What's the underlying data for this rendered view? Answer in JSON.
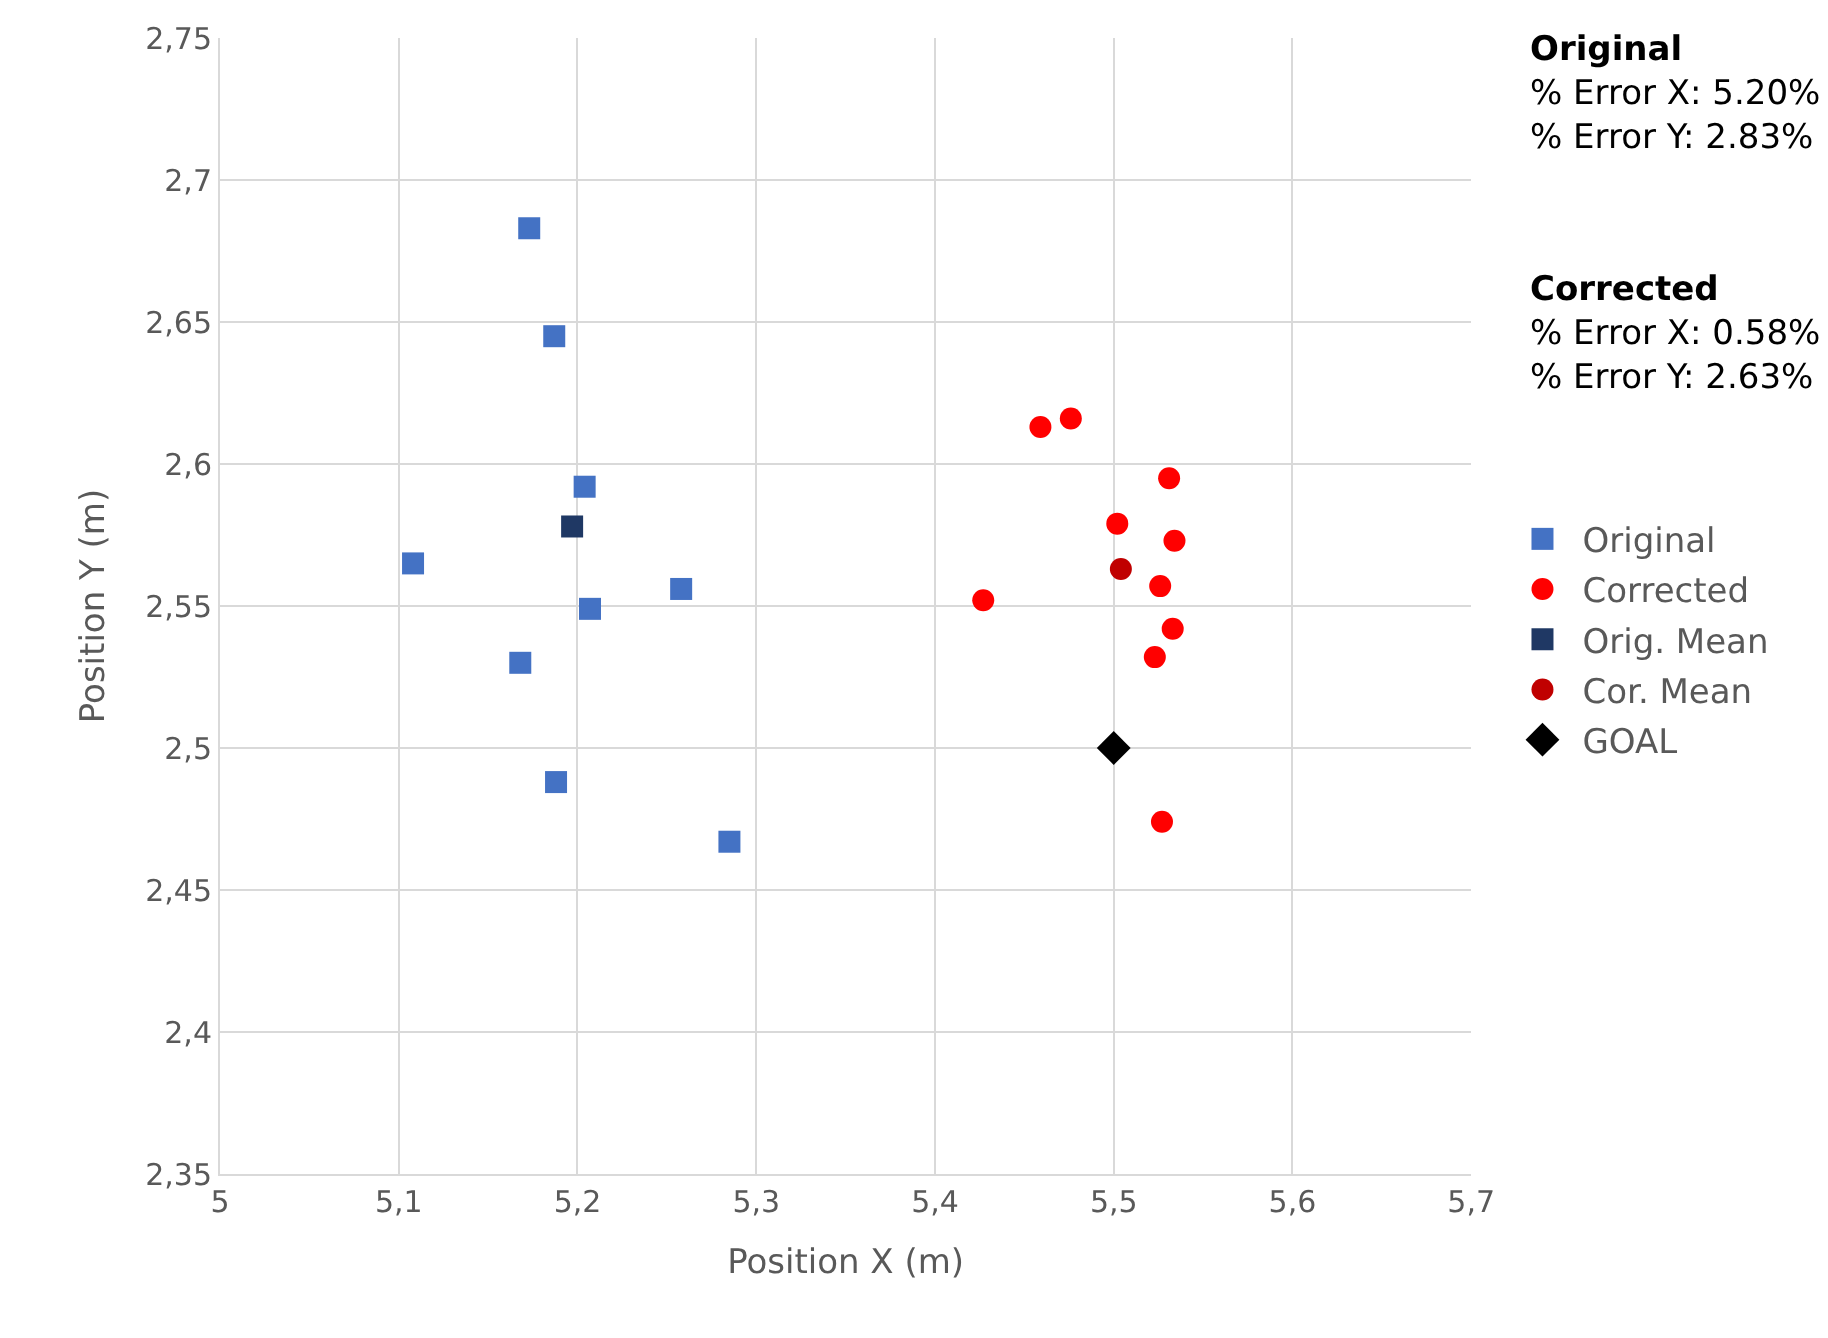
{
  "chart_data": {
    "type": "scatter",
    "xlabel": "Position X (m)",
    "ylabel": "Position Y (m)",
    "xlim": [
      5,
      5.7
    ],
    "xticks": [
      5,
      {
        "value": 5.1,
        "label": "5,1"
      },
      {
        "value": 5.2,
        "label": "5,2"
      },
      {
        "value": 5.3,
        "label": "5,3"
      },
      {
        "value": 5.4,
        "label": "5,4"
      },
      {
        "value": 5.5,
        "label": "5,5"
      },
      {
        "value": 5.6,
        "label": "5,6"
      },
      {
        "value": 5.7,
        "label": "5,7"
      }
    ],
    "ylim": [
      2.35,
      2.75
    ],
    "yticks": [
      {
        "value": 2.35,
        "label": "2,35"
      },
      {
        "value": 2.4,
        "label": "2,4"
      },
      {
        "value": 2.45,
        "label": "2,45"
      },
      {
        "value": 2.5,
        "label": "2,5"
      },
      {
        "value": 2.55,
        "label": "2,55"
      },
      {
        "value": 2.6,
        "label": "2,6"
      },
      {
        "value": 2.65,
        "label": "2,65"
      },
      {
        "value": 2.7,
        "label": "2,7"
      },
      {
        "value": 2.75,
        "label": "2,75"
      }
    ],
    "grid": true,
    "legend": "right",
    "series": [
      {
        "name": "Original",
        "color": "#4472c4",
        "marker": "square",
        "x": [
          5.173,
          5.187,
          5.204,
          5.108,
          5.207,
          5.258,
          5.168,
          5.188,
          5.285
        ],
        "values": [
          2.683,
          2.645,
          2.592,
          2.565,
          2.549,
          2.556,
          2.53,
          2.488,
          2.467
        ]
      },
      {
        "name": "Corrected",
        "color": "#ff0000",
        "marker": "circle",
        "x": [
          5.459,
          5.476,
          5.531,
          5.502,
          5.534,
          5.526,
          5.427,
          5.533,
          5.523,
          5.527
        ],
        "values": [
          2.613,
          2.616,
          2.595,
          2.579,
          2.573,
          2.557,
          2.552,
          2.542,
          2.532,
          2.474
        ]
      },
      {
        "name": "Orig. Mean",
        "color": "#1f3864",
        "marker": "square",
        "x": [
          5.197
        ],
        "values": [
          2.578
        ]
      },
      {
        "name": "Cor. Mean",
        "color": "#c00000",
        "marker": "circle",
        "x": [
          5.504
        ],
        "values": [
          2.563
        ]
      },
      {
        "name": "GOAL",
        "color": "#000000",
        "marker": "diamond",
        "x": [
          5.5
        ],
        "values": [
          2.5
        ]
      }
    ],
    "annotations": [
      "Original\n% Error X: 5.20%\n% Error Y: 2.83%",
      "Corrected\n% Error X: 0.58%\n% Error Y: 2.63%"
    ]
  }
}
